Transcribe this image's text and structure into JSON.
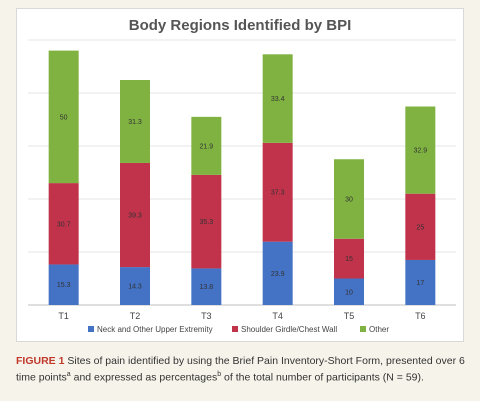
{
  "chart_data": {
    "type": "bar",
    "stacked": true,
    "title": "Body Regions Identified by BPI",
    "categories": [
      "T1",
      "T2",
      "T3",
      "T4",
      "T5",
      "T6"
    ],
    "series": [
      {
        "name": "Neck and Other Upper Extremity",
        "color": "#4472c4",
        "values": [
          15.3,
          14.3,
          13.8,
          23.9,
          10,
          17
        ],
        "labels": [
          "15.3",
          "14.3",
          "13.8",
          "23.9",
          "10",
          "17"
        ]
      },
      {
        "name": "Shoulder Girdle/Chest Wall",
        "color": "#c0334b",
        "values": [
          30.7,
          39.3,
          35.3,
          37.3,
          15,
          25
        ],
        "labels": [
          "30.7",
          "39.3",
          "35.3",
          "37.3",
          "15",
          "25"
        ]
      },
      {
        "name": "Other",
        "color": "#7fb241",
        "values": [
          50,
          31.3,
          21.9,
          33.4,
          30,
          32.9
        ],
        "labels": [
          "50",
          "31.3",
          "21.9",
          "33.4",
          "30",
          "32.9"
        ]
      }
    ],
    "ylim": [
      0,
      100
    ],
    "grid": true,
    "legend_position": "bottom"
  },
  "caption": {
    "figure_label": "FIGURE 1",
    "text_1": " Sites of pain identified by using the Brief Pain Inventory-Short Form, presented over 6 time points",
    "sup_a": "a",
    "text_2": " and expressed as percentages",
    "sup_b": "b",
    "text_3": " of the total number of participants (N = 59)."
  }
}
